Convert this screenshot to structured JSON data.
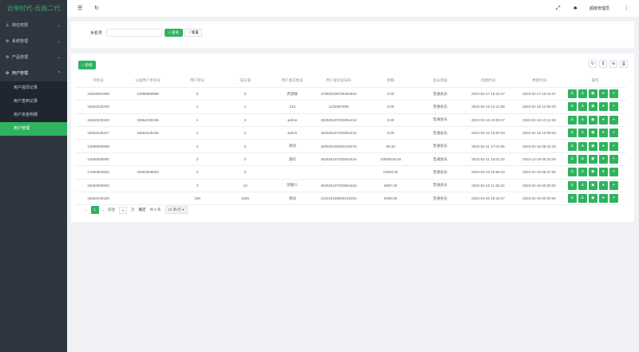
{
  "app": {
    "title": "云帝时代-云商二代",
    "user": "超级管理员"
  },
  "sidebar": {
    "menus": [
      {
        "label": "岗位权限",
        "icon": "user-icon",
        "open": false
      },
      {
        "label": "系统管理",
        "icon": "gear-icon",
        "open": false
      },
      {
        "label": "产品管理",
        "icon": "gear-icon",
        "open": false
      },
      {
        "label": "用户管理",
        "icon": "gear-icon",
        "open": true
      }
    ],
    "subitems": [
      {
        "label": "用户提现记录"
      },
      {
        "label": "用户签到记录"
      },
      {
        "label": "用户资金明细"
      },
      {
        "label": "用户管理",
        "active": true
      }
    ]
  },
  "search": {
    "label": "手机号",
    "placeholder": "",
    "query": "查询",
    "reset": "重置"
  },
  "toolbar": {
    "add": "+ 新增"
  },
  "table": {
    "columns": [
      "手机号",
      "父级用户手机号",
      "用户积分",
      "成长值",
      "用户真实姓名",
      "用户身份证号码",
      "余额",
      "会员等级",
      "创建时间",
      "更新时间",
      "操作"
    ],
    "rows": [
      [
        "13919091999",
        "13888888888",
        "0",
        "0",
        "周淑敏",
        "472833198708464816",
        "0.00",
        "普通会员",
        "2022-02-17 18:15:47",
        "2022-02-17 18:15:47"
      ],
      [
        "15652230100",
        "",
        "1",
        "1",
        "123",
        "1234567890",
        "0.00",
        "普通会员",
        "2022-02-10 13:11:58",
        "2022-02-16 12:56:23"
      ],
      [
        "15652239100",
        "15652239196",
        "1",
        "2",
        "admin",
        "452525197303054416",
        "0.00",
        "普通会员",
        "2022-02-15 13:00:27",
        "2022-02-16 13:11:28"
      ],
      [
        "15652239157",
        "15652235196",
        "1",
        "2",
        "admin",
        "452525197303054416",
        "0.00",
        "普通会员",
        "2022-02-10 13:00:03",
        "2022-02-16 13:00:03"
      ],
      [
        "13999090999",
        "",
        "2",
        "0",
        "测试",
        "320020199302150476",
        "65.00",
        "普通会员",
        "2022-02-11 17:01:06",
        "2022-02-16 08:42:33"
      ],
      [
        "13600080880",
        "",
        "2",
        "0",
        "请问",
        "452525197303054416",
        "10000015.00",
        "普通会员",
        "2022-02-11 15:01:18",
        "2024-12-18 08:25:49"
      ],
      [
        "17000560584",
        "15063208903",
        "2",
        "0",
        "",
        "",
        "10000.00",
        "普通会员",
        "2022-02-10 16:56:43",
        "2022-02-16 08:37:58"
      ],
      [
        "15063380903",
        "",
        "3",
        "10",
        "邱朋人",
        "452525197303054416",
        "6857.00",
        "普通会员",
        "2022-02-10 11:36:22",
        "2022-02-16 00:00:00"
      ],
      [
        "15652239106",
        "",
        "188",
        "3365",
        "测试",
        "210124198603162281",
        "9409.58",
        "普通会员",
        "2022-01-20 18:43:27",
        "2022-02-16 00:00:00"
      ]
    ],
    "more": "..."
  },
  "pagination": {
    "current": "1",
    "goto": "前往",
    "page_input": "1",
    "page_unit": "页",
    "confirm": "确定",
    "total": "共 9 条",
    "size": "10 条/页 ▾"
  },
  "colors": {
    "accent": "#2fb35e",
    "sidebar": "#2e3640"
  }
}
